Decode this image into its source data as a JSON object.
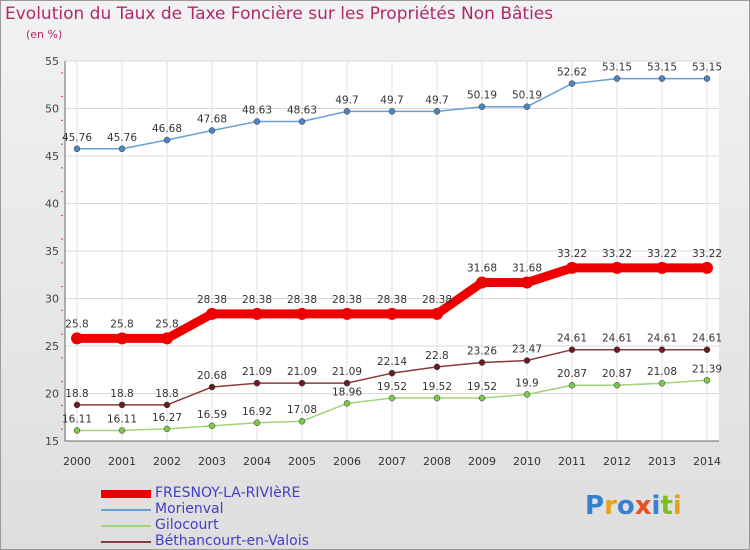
{
  "title": "Evolution du Taux de Taxe Foncière sur les Propriétés Non Bâties",
  "unit_label": "(en %)",
  "logo_text": "Proxiti",
  "chart_data": {
    "type": "line",
    "categories": [
      "2000",
      "2001",
      "2002",
      "2003",
      "2004",
      "2005",
      "2006",
      "2007",
      "2008",
      "2009",
      "2010",
      "2011",
      "2012",
      "2013",
      "2014"
    ],
    "ylim": [
      15,
      55
    ],
    "yticks": [
      15,
      20,
      25,
      30,
      35,
      40,
      45,
      50,
      55
    ],
    "grid": true,
    "series": [
      {
        "name": "FRESNOY-LA-RIVIèRE",
        "color": "#ee0000",
        "bold": true,
        "values": [
          25.8,
          25.8,
          25.8,
          28.38,
          28.38,
          28.38,
          28.38,
          28.38,
          28.38,
          31.68,
          31.68,
          33.22,
          33.22,
          33.22,
          33.22
        ],
        "labels": [
          "25.8",
          "25.8",
          "25.8",
          "28.38",
          "28.38",
          "28.38",
          "28.38",
          "28.38",
          "28.38",
          "31.68",
          "31.68",
          "33.22",
          "33.22",
          "33.22",
          "33.22"
        ]
      },
      {
        "name": "Morienval",
        "color": "#6a9fd4",
        "marker": "#4d86c4",
        "values": [
          45.76,
          45.76,
          46.68,
          47.68,
          48.63,
          48.63,
          49.7,
          49.7,
          49.7,
          50.19,
          50.19,
          52.62,
          53.15,
          53.15,
          53.15
        ],
        "labels": [
          "45.76",
          "45.76",
          "46.68",
          "47.68",
          "48.63",
          "48.63",
          "49.7",
          "49.7",
          "49.7",
          "50.19",
          "50.19",
          "52.62",
          "53.15",
          "53.15",
          "53.15"
        ]
      },
      {
        "name": "Gilocourt",
        "color": "#9fd47a",
        "marker": "#7cc84a",
        "values": [
          16.11,
          16.11,
          16.27,
          16.59,
          16.92,
          17.08,
          18.96,
          19.52,
          19.52,
          19.52,
          19.9,
          20.87,
          20.87,
          21.08,
          21.39
        ],
        "labels": [
          "16.11",
          "16.11",
          "16.27",
          "16.59",
          "16.92",
          "17.08",
          "18.96",
          "19.52",
          "19.52",
          "19.52",
          "19.9",
          "20.87",
          "20.87",
          "21.08",
          "21.39"
        ]
      },
      {
        "name": "Béthancourt-en-Valois",
        "color": "#8a3a3a",
        "marker": "#6a1e1e",
        "values": [
          18.8,
          18.8,
          18.8,
          20.68,
          21.09,
          21.09,
          21.09,
          22.14,
          22.8,
          23.26,
          23.47,
          24.61,
          24.61,
          24.61,
          24.61
        ],
        "labels": [
          "18.8",
          "18.8",
          "18.8",
          "20.68",
          "21.09",
          "21.09",
          "21.09",
          "22.14",
          "22.8",
          "23.26",
          "23.47",
          "24.61",
          "24.61",
          "24.61",
          "24.61"
        ]
      }
    ]
  }
}
